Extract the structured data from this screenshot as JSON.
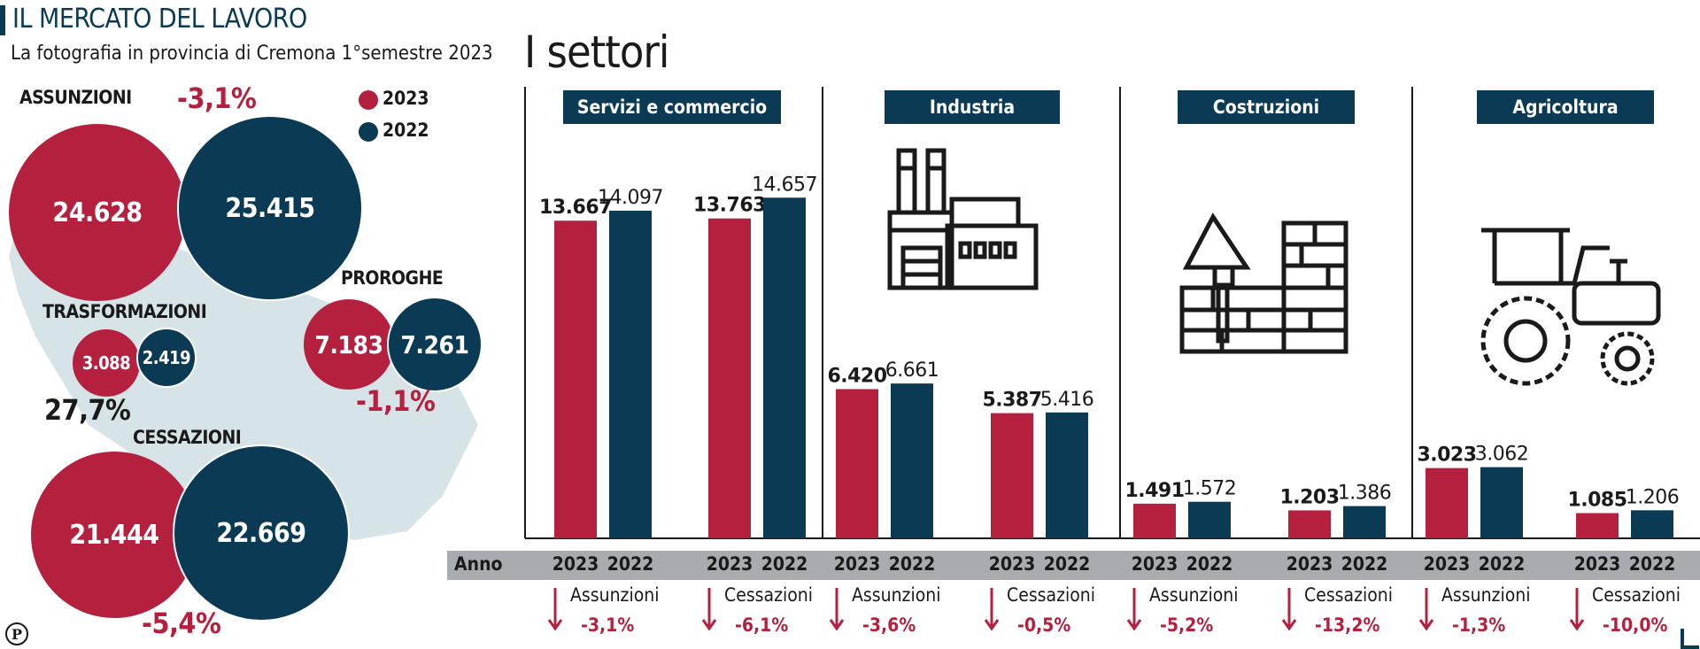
{
  "header": {
    "title": "IL MERCATO DEL LAVORO",
    "subtitle": "La fotografia in provincia di Cremona 1°semestre 2023"
  },
  "legend": [
    {
      "label": "2023",
      "color": "#b5203f"
    },
    {
      "label": "2022",
      "color": "#0b3a55"
    }
  ],
  "summary": {
    "assunzioni": {
      "label": "ASSUNZIONI",
      "v2023": "24.628",
      "v2022": "25.415",
      "change": "-3,1%"
    },
    "trasformazioni": {
      "label": "TRASFORMAZIONI",
      "v2023": "3.088",
      "v2022": "2.419",
      "change": "27,7%"
    },
    "proroghe": {
      "label": "PROROGHE",
      "v2023": "7.183",
      "v2022": "7.261",
      "change": "-1,1%"
    },
    "cessazioni": {
      "label": "CESSAZIONI",
      "v2023": "21.444",
      "v2022": "22.669",
      "change": "-5,4%"
    }
  },
  "settori_title": "I settori",
  "anno_label": "Anno",
  "publisher_mark": "P",
  "icons": [
    "factory-icon",
    "brick-wall-trowel-icon",
    "tractor-icon"
  ],
  "chart_data": {
    "type": "bar",
    "series": [
      {
        "name": "2023",
        "color": "#b5203f"
      },
      {
        "name": "2022",
        "color": "#0b3a55"
      }
    ],
    "ylim": [
      0,
      16000
    ],
    "sectors": [
      {
        "name": "Servizi e commercio",
        "groups": [
          {
            "category": "Assunzioni",
            "v2023": 13667,
            "v2022": 14097,
            "label2023": "13.667",
            "label2022": "14.097",
            "change": "-3,1%"
          },
          {
            "category": "Cessazioni",
            "v2023": 13763,
            "v2022": 14657,
            "label2023": "13.763",
            "label2022": "14.657",
            "change": "-6,1%"
          }
        ]
      },
      {
        "name": "Industria",
        "groups": [
          {
            "category": "Assunzioni",
            "v2023": 6420,
            "v2022": 6661,
            "label2023": "6.420",
            "label2022": "6.661",
            "change": "-3,6%"
          },
          {
            "category": "Cessazioni",
            "v2023": 5387,
            "v2022": 5416,
            "label2023": "5.387",
            "label2022": "5.416",
            "change": "-0,5%"
          }
        ]
      },
      {
        "name": "Costruzioni",
        "groups": [
          {
            "category": "Assunzioni",
            "v2023": 1491,
            "v2022": 1572,
            "label2023": "1.491",
            "label2022": "1.572",
            "change": "-5,2%"
          },
          {
            "category": "Cessazioni",
            "v2023": 1203,
            "v2022": 1386,
            "label2023": "1.203",
            "label2022": "1.386",
            "change": "-13,2%"
          }
        ]
      },
      {
        "name": "Agricoltura",
        "groups": [
          {
            "category": "Assunzioni",
            "v2023": 3023,
            "v2022": 3062,
            "label2023": "3.023",
            "label2022": "3.062",
            "change": "-1,3%"
          },
          {
            "category": "Cessazioni",
            "v2023": 1085,
            "v2022": 1206,
            "label2023": "1.085",
            "label2022": "1.206",
            "change": "-10,0%"
          }
        ]
      }
    ]
  }
}
